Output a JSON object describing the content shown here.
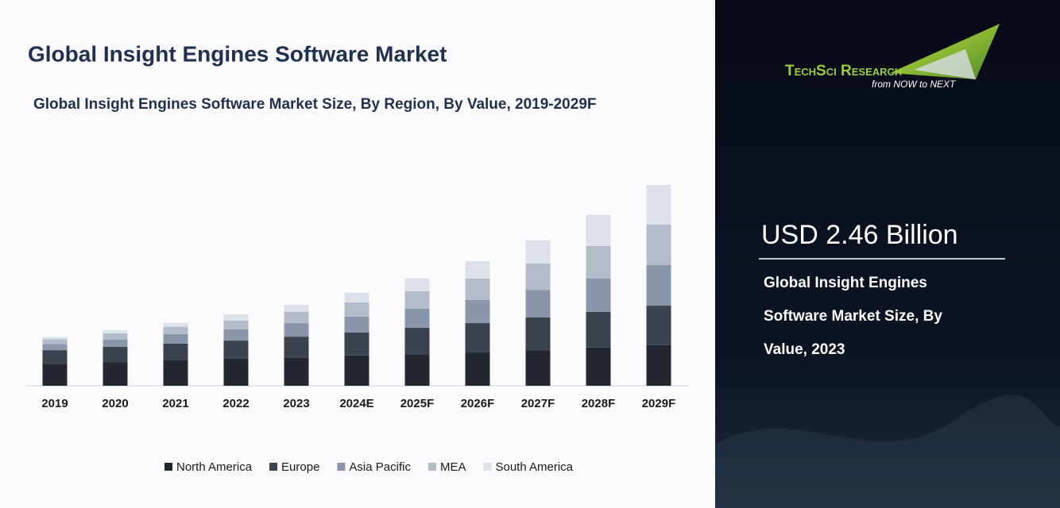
{
  "chart_data": {
    "type": "stacked_bar",
    "title": "Global Insight Engines Software Market",
    "subtitle": "Global Insight Engines Software Market Size, By Region, By Value, 2019-2029F",
    "categories": [
      "2019",
      "2020",
      "2021",
      "2022",
      "2023",
      "2024E",
      "2025F",
      "2026F",
      "2027F",
      "2028F",
      "2029F"
    ],
    "series": [
      {
        "name": "North America",
        "color": "#232830",
        "values": [
          0.67,
          0.72,
          0.77,
          0.82,
          0.86,
          0.92,
          0.96,
          1.01,
          1.08,
          1.16,
          1.23
        ]
      },
      {
        "name": "Europe",
        "color": "#3b4250",
        "values": [
          0.41,
          0.46,
          0.51,
          0.55,
          0.63,
          0.7,
          0.8,
          0.89,
          0.99,
          1.08,
          1.2
        ]
      },
      {
        "name": "Asia Pacific",
        "color": "#8a96aa",
        "values": [
          0.19,
          0.22,
          0.29,
          0.34,
          0.41,
          0.48,
          0.58,
          0.7,
          0.84,
          1.01,
          1.23
        ]
      },
      {
        "name": "MEA",
        "color": "#b4bccb",
        "values": [
          0.14,
          0.19,
          0.22,
          0.27,
          0.34,
          0.43,
          0.53,
          0.65,
          0.8,
          0.99,
          1.23
        ]
      },
      {
        "name": "South America",
        "color": "#dde1e9",
        "values": [
          0.07,
          0.1,
          0.12,
          0.19,
          0.22,
          0.29,
          0.39,
          0.53,
          0.7,
          0.94,
          1.2
        ]
      }
    ],
    "legend": "bottom"
  },
  "panel": {
    "brand": "TechSci Research",
    "tagline": "from NOW to NEXT",
    "headline": "USD 2.46 Billion",
    "description": "Global Insight Engines Software Market Size, By Value, 2023"
  }
}
